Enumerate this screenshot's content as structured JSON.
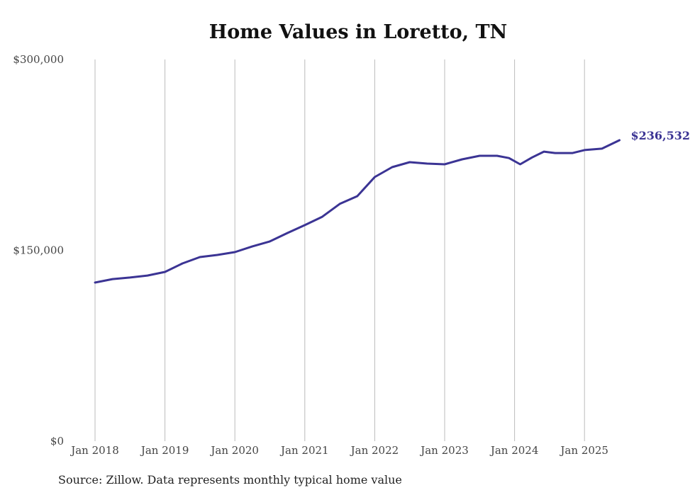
{
  "chart_data": {
    "type": "line",
    "title": "Home Values in Loretto, TN",
    "xlabel": "",
    "ylabel": "",
    "ylim": [
      0,
      300000
    ],
    "y_ticks": [
      0,
      150000,
      300000
    ],
    "y_tick_labels": [
      "$0",
      "$150,000",
      "$300,000"
    ],
    "x_ticks": [
      2018,
      2019,
      2020,
      2021,
      2022,
      2023,
      2024,
      2025
    ],
    "x_tick_labels": [
      "Jan 2018",
      "Jan 2019",
      "Jan 2020",
      "Jan 2021",
      "Jan 2022",
      "Jan 2023",
      "Jan 2024",
      "Jan 2025"
    ],
    "grid": "vertical",
    "series": [
      {
        "name": "Typical home value",
        "color": "#3b3494",
        "x": [
          2018.0,
          2018.25,
          2018.5,
          2018.75,
          2019.0,
          2019.25,
          2019.5,
          2019.75,
          2020.0,
          2020.25,
          2020.5,
          2020.75,
          2021.0,
          2021.25,
          2021.5,
          2021.75,
          2022.0,
          2022.25,
          2022.5,
          2022.75,
          2023.0,
          2023.25,
          2023.5,
          2023.75,
          2023.92,
          2024.08,
          2024.25,
          2024.42,
          2024.58,
          2024.83,
          2025.0,
          2025.25,
          2025.5
        ],
        "values": [
          124700,
          127400,
          128600,
          130200,
          133000,
          139700,
          144700,
          146400,
          148600,
          153100,
          157000,
          163600,
          169800,
          176400,
          186500,
          192600,
          207600,
          215400,
          219300,
          218200,
          217600,
          221500,
          224300,
          224300,
          222500,
          217600,
          223000,
          227600,
          226500,
          226500,
          228800,
          229900,
          236532
        ]
      }
    ],
    "end_label": "$236,532"
  },
  "source": "Source: Zillow. Data represents monthly typical home value"
}
